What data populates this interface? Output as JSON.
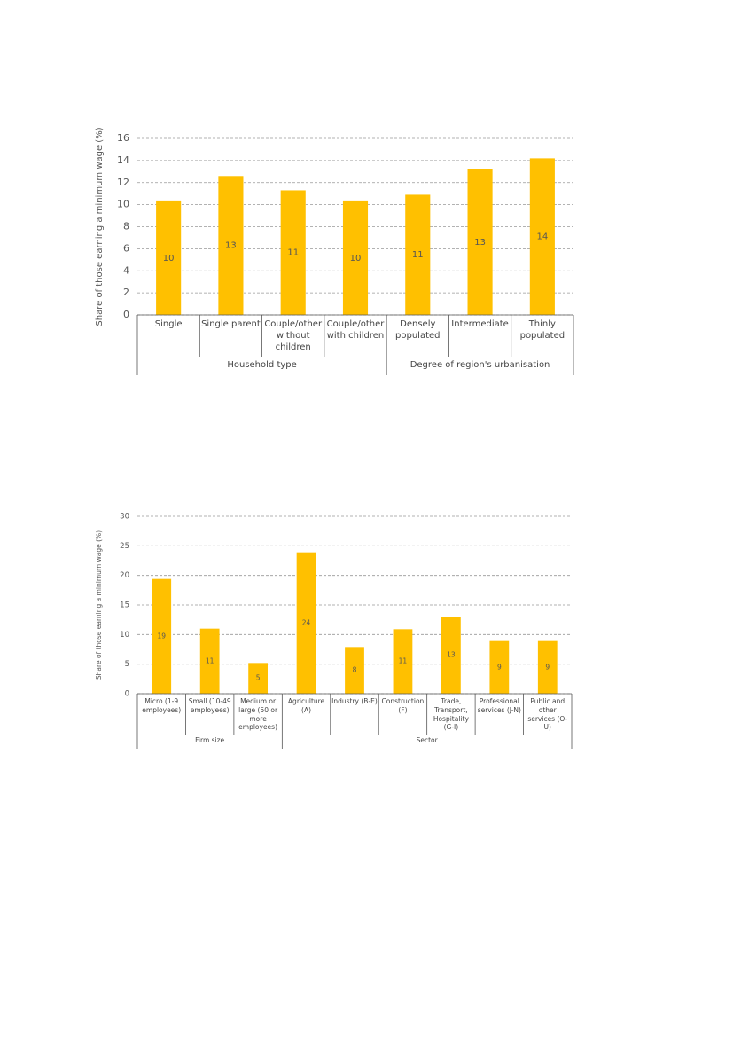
{
  "chart_data": [
    {
      "type": "bar",
      "y_label": "Share of those earning a minimum wage  (%)",
      "groups": [
        {
          "name": "Household type",
          "categories": [
            "Single",
            "Single parent",
            "Couple/other without children",
            "Couple/other with children"
          ]
        },
        {
          "name": "Degree of region's urbanisation",
          "categories": [
            "Densely populated",
            "Intermediate",
            "Thinly populated"
          ]
        }
      ],
      "values": [
        10.3,
        12.6,
        11.3,
        10.3,
        10.9,
        13.2,
        14.2
      ],
      "value_labels": [
        "10",
        "13",
        "11",
        "10",
        "11",
        "13",
        "14"
      ],
      "color": "#ffc000",
      "ylim": [
        0,
        16
      ],
      "yticks": [
        0,
        2,
        4,
        6,
        8,
        10,
        12,
        14,
        16
      ],
      "grid": true
    },
    {
      "type": "bar",
      "y_label": "Share of those earning a minimum wage  (%)",
      "groups": [
        {
          "name": "Firm size",
          "categories": [
            "Micro (1-9 employees)",
            "Small (10-49 employees)",
            "Medium or large (50 or more employees)"
          ]
        },
        {
          "name": "Sector",
          "categories": [
            "Agriculture (A)",
            "Industry (B-E)",
            "Construction (F)",
            "Trade, Transport, Hospitality (G-I)",
            "Professional services (J-N)",
            "Public and other services (O-U)"
          ]
        }
      ],
      "values": [
        19.4,
        11,
        5.2,
        23.9,
        7.9,
        10.9,
        13,
        8.9,
        8.9
      ],
      "value_labels": [
        "19",
        "11",
        "5",
        "24",
        "8",
        "11",
        "13",
        "9",
        "9"
      ],
      "color": "#ffc000",
      "ylim": [
        0,
        30
      ],
      "yticks": [
        0,
        5,
        10,
        15,
        20,
        25,
        30
      ],
      "grid": true
    }
  ]
}
